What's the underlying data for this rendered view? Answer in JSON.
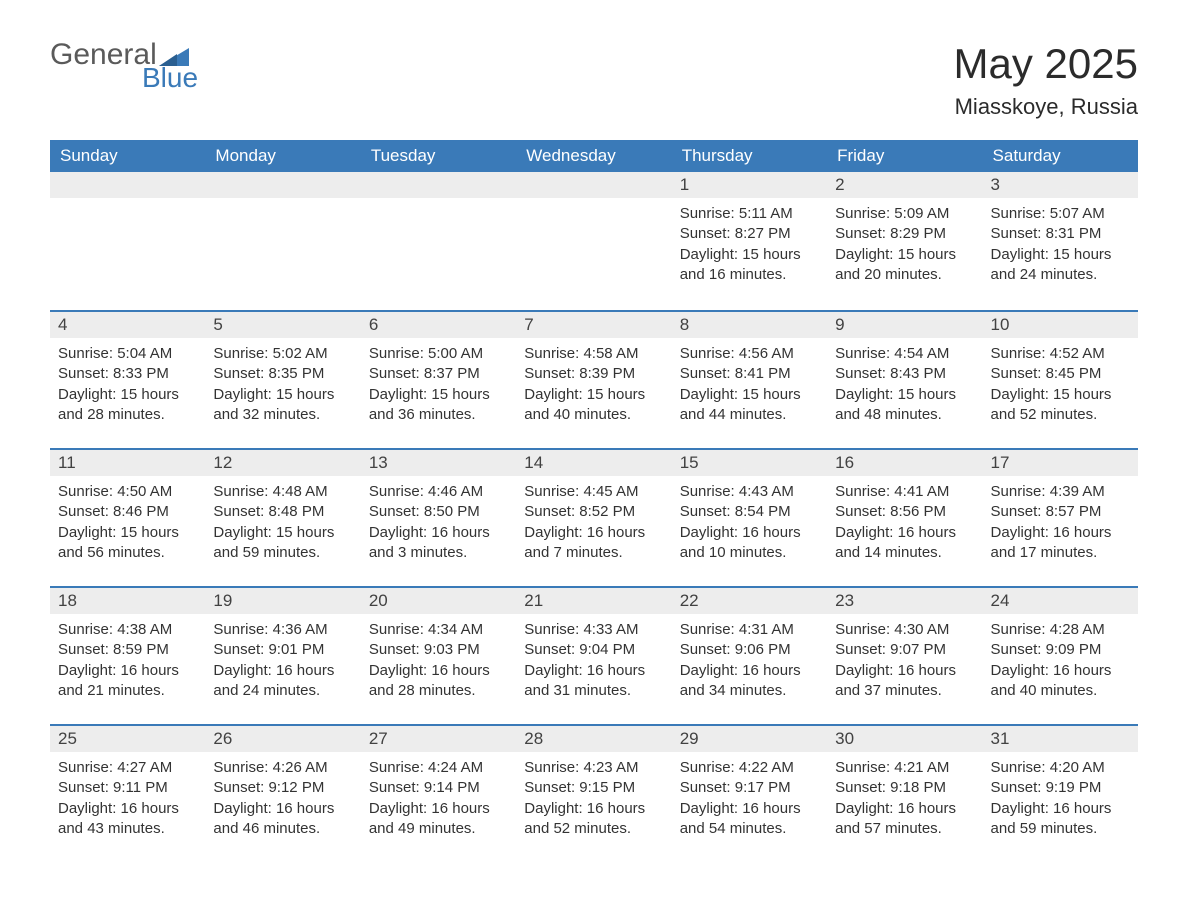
{
  "logo": {
    "general": "General",
    "blue": "Blue"
  },
  "title": "May 2025",
  "location": "Miasskoye, Russia",
  "colors": {
    "header_bg": "#3a7ab8",
    "header_text": "#ffffff",
    "daynum_bg": "#ededed",
    "border_top": "#3a7ab8",
    "body_text": "#333333",
    "logo_gray": "#5a5a5a",
    "logo_blue": "#3a7ab8"
  },
  "day_headers": [
    "Sunday",
    "Monday",
    "Tuesday",
    "Wednesday",
    "Thursday",
    "Friday",
    "Saturday"
  ],
  "weeks": [
    [
      {
        "num": "",
        "sunrise": "",
        "sunset": "",
        "daylight": ""
      },
      {
        "num": "",
        "sunrise": "",
        "sunset": "",
        "daylight": ""
      },
      {
        "num": "",
        "sunrise": "",
        "sunset": "",
        "daylight": ""
      },
      {
        "num": "",
        "sunrise": "",
        "sunset": "",
        "daylight": ""
      },
      {
        "num": "1",
        "sunrise": "Sunrise: 5:11 AM",
        "sunset": "Sunset: 8:27 PM",
        "daylight": "Daylight: 15 hours and 16 minutes."
      },
      {
        "num": "2",
        "sunrise": "Sunrise: 5:09 AM",
        "sunset": "Sunset: 8:29 PM",
        "daylight": "Daylight: 15 hours and 20 minutes."
      },
      {
        "num": "3",
        "sunrise": "Sunrise: 5:07 AM",
        "sunset": "Sunset: 8:31 PM",
        "daylight": "Daylight: 15 hours and 24 minutes."
      }
    ],
    [
      {
        "num": "4",
        "sunrise": "Sunrise: 5:04 AM",
        "sunset": "Sunset: 8:33 PM",
        "daylight": "Daylight: 15 hours and 28 minutes."
      },
      {
        "num": "5",
        "sunrise": "Sunrise: 5:02 AM",
        "sunset": "Sunset: 8:35 PM",
        "daylight": "Daylight: 15 hours and 32 minutes."
      },
      {
        "num": "6",
        "sunrise": "Sunrise: 5:00 AM",
        "sunset": "Sunset: 8:37 PM",
        "daylight": "Daylight: 15 hours and 36 minutes."
      },
      {
        "num": "7",
        "sunrise": "Sunrise: 4:58 AM",
        "sunset": "Sunset: 8:39 PM",
        "daylight": "Daylight: 15 hours and 40 minutes."
      },
      {
        "num": "8",
        "sunrise": "Sunrise: 4:56 AM",
        "sunset": "Sunset: 8:41 PM",
        "daylight": "Daylight: 15 hours and 44 minutes."
      },
      {
        "num": "9",
        "sunrise": "Sunrise: 4:54 AM",
        "sunset": "Sunset: 8:43 PM",
        "daylight": "Daylight: 15 hours and 48 minutes."
      },
      {
        "num": "10",
        "sunrise": "Sunrise: 4:52 AM",
        "sunset": "Sunset: 8:45 PM",
        "daylight": "Daylight: 15 hours and 52 minutes."
      }
    ],
    [
      {
        "num": "11",
        "sunrise": "Sunrise: 4:50 AM",
        "sunset": "Sunset: 8:46 PM",
        "daylight": "Daylight: 15 hours and 56 minutes."
      },
      {
        "num": "12",
        "sunrise": "Sunrise: 4:48 AM",
        "sunset": "Sunset: 8:48 PM",
        "daylight": "Daylight: 15 hours and 59 minutes."
      },
      {
        "num": "13",
        "sunrise": "Sunrise: 4:46 AM",
        "sunset": "Sunset: 8:50 PM",
        "daylight": "Daylight: 16 hours and 3 minutes."
      },
      {
        "num": "14",
        "sunrise": "Sunrise: 4:45 AM",
        "sunset": "Sunset: 8:52 PM",
        "daylight": "Daylight: 16 hours and 7 minutes."
      },
      {
        "num": "15",
        "sunrise": "Sunrise: 4:43 AM",
        "sunset": "Sunset: 8:54 PM",
        "daylight": "Daylight: 16 hours and 10 minutes."
      },
      {
        "num": "16",
        "sunrise": "Sunrise: 4:41 AM",
        "sunset": "Sunset: 8:56 PM",
        "daylight": "Daylight: 16 hours and 14 minutes."
      },
      {
        "num": "17",
        "sunrise": "Sunrise: 4:39 AM",
        "sunset": "Sunset: 8:57 PM",
        "daylight": "Daylight: 16 hours and 17 minutes."
      }
    ],
    [
      {
        "num": "18",
        "sunrise": "Sunrise: 4:38 AM",
        "sunset": "Sunset: 8:59 PM",
        "daylight": "Daylight: 16 hours and 21 minutes."
      },
      {
        "num": "19",
        "sunrise": "Sunrise: 4:36 AM",
        "sunset": "Sunset: 9:01 PM",
        "daylight": "Daylight: 16 hours and 24 minutes."
      },
      {
        "num": "20",
        "sunrise": "Sunrise: 4:34 AM",
        "sunset": "Sunset: 9:03 PM",
        "daylight": "Daylight: 16 hours and 28 minutes."
      },
      {
        "num": "21",
        "sunrise": "Sunrise: 4:33 AM",
        "sunset": "Sunset: 9:04 PM",
        "daylight": "Daylight: 16 hours and 31 minutes."
      },
      {
        "num": "22",
        "sunrise": "Sunrise: 4:31 AM",
        "sunset": "Sunset: 9:06 PM",
        "daylight": "Daylight: 16 hours and 34 minutes."
      },
      {
        "num": "23",
        "sunrise": "Sunrise: 4:30 AM",
        "sunset": "Sunset: 9:07 PM",
        "daylight": "Daylight: 16 hours and 37 minutes."
      },
      {
        "num": "24",
        "sunrise": "Sunrise: 4:28 AM",
        "sunset": "Sunset: 9:09 PM",
        "daylight": "Daylight: 16 hours and 40 minutes."
      }
    ],
    [
      {
        "num": "25",
        "sunrise": "Sunrise: 4:27 AM",
        "sunset": "Sunset: 9:11 PM",
        "daylight": "Daylight: 16 hours and 43 minutes."
      },
      {
        "num": "26",
        "sunrise": "Sunrise: 4:26 AM",
        "sunset": "Sunset: 9:12 PM",
        "daylight": "Daylight: 16 hours and 46 minutes."
      },
      {
        "num": "27",
        "sunrise": "Sunrise: 4:24 AM",
        "sunset": "Sunset: 9:14 PM",
        "daylight": "Daylight: 16 hours and 49 minutes."
      },
      {
        "num": "28",
        "sunrise": "Sunrise: 4:23 AM",
        "sunset": "Sunset: 9:15 PM",
        "daylight": "Daylight: 16 hours and 52 minutes."
      },
      {
        "num": "29",
        "sunrise": "Sunrise: 4:22 AM",
        "sunset": "Sunset: 9:17 PM",
        "daylight": "Daylight: 16 hours and 54 minutes."
      },
      {
        "num": "30",
        "sunrise": "Sunrise: 4:21 AM",
        "sunset": "Sunset: 9:18 PM",
        "daylight": "Daylight: 16 hours and 57 minutes."
      },
      {
        "num": "31",
        "sunrise": "Sunrise: 4:20 AM",
        "sunset": "Sunset: 9:19 PM",
        "daylight": "Daylight: 16 hours and 59 minutes."
      }
    ]
  ]
}
